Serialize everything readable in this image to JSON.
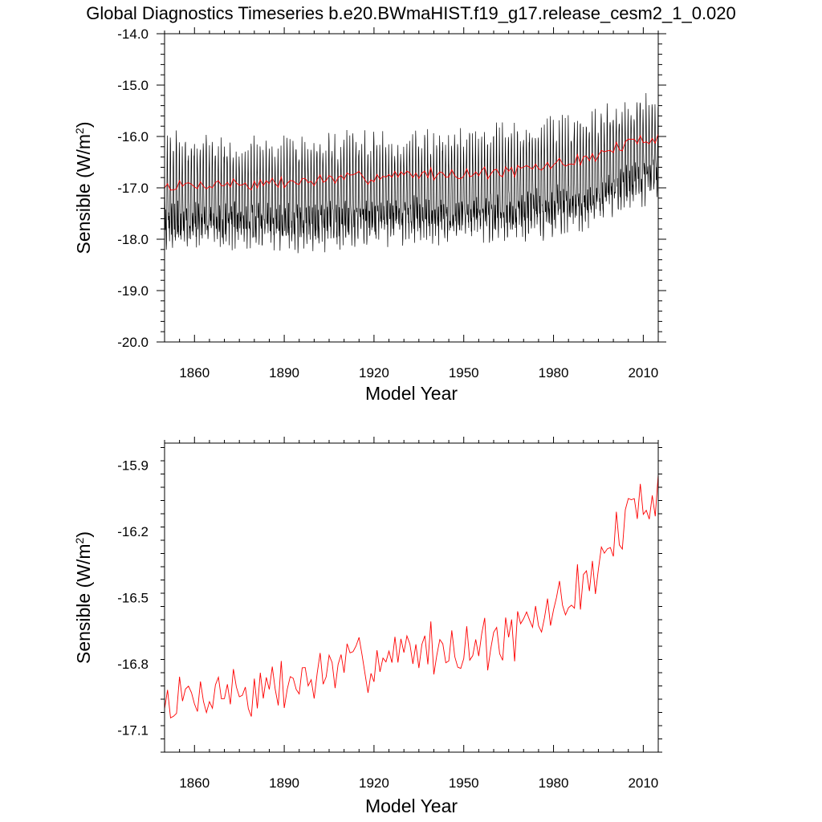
{
  "figure": {
    "title": "Global Diagnostics Timeseries b.e20.BWmaHIST.f19_g17.release_cesm2_1_0.020"
  },
  "chart_data": [
    {
      "type": "line",
      "name": "monthly-and-annual",
      "title": "",
      "xlabel": "Model Year",
      "ylabel_main": "Sensible (W/m",
      "ylabel_sup": "2",
      "ylabel_close": ")",
      "xlim": [
        1850,
        2015
      ],
      "ylim": [
        -20.0,
        -14.0
      ],
      "x_ticks": [
        1860,
        1890,
        1920,
        1950,
        1980,
        2010
      ],
      "x_tick_labels": [
        "1860",
        "1890",
        "1920",
        "1950",
        "1980",
        "2010"
      ],
      "y_ticks": [
        -20.0,
        -19.0,
        -18.0,
        -17.0,
        -16.0,
        -15.0,
        -14.0
      ],
      "y_tick_labels": [
        "-20.0",
        "-19.0",
        "-18.0",
        "-17.0",
        "-16.0",
        "-15.0",
        "-14.0"
      ],
      "series": [
        {
          "name": "monthly",
          "color": "#000000",
          "monthly_envelope": {
            "years": [
              1850,
              1870,
              1890,
              1910,
              1930,
              1950,
              1970,
              1990,
              2000,
              2010,
              2015
            ],
            "max": [
              -16.0,
              -16.1,
              -16.1,
              -16.0,
              -16.0,
              -15.9,
              -15.8,
              -15.6,
              -15.4,
              -15.2,
              -15.2
            ],
            "min": [
              -18.6,
              -18.5,
              -18.6,
              -18.5,
              -18.4,
              -18.4,
              -18.4,
              -18.2,
              -17.9,
              -17.7,
              -17.5
            ]
          }
        },
        {
          "name": "annual",
          "color": "#ff0000",
          "anchors": {
            "years": [
              1850,
              1860,
              1870,
              1880,
              1890,
              1900,
              1910,
              1920,
              1930,
              1940,
              1950,
              1960,
              1970,
              1980,
              1990,
              1995,
              2000,
              2005,
              2010,
              2015
            ],
            "values": [
              -16.98,
              -16.95,
              -16.91,
              -16.93,
              -16.9,
              -16.86,
              -16.82,
              -16.78,
              -16.74,
              -16.73,
              -16.72,
              -16.7,
              -16.66,
              -16.55,
              -16.45,
              -16.35,
              -16.25,
              -16.15,
              -16.05,
              -16.0
            ]
          }
        }
      ]
    },
    {
      "type": "line",
      "name": "annual-mean",
      "title": "",
      "xlabel": "Model Year",
      "ylabel_main": "Sensible (W/m",
      "ylabel_sup": "2",
      "ylabel_close": ")",
      "xlim": [
        1850,
        2015
      ],
      "ylim": [
        -17.2,
        -15.8
      ],
      "x_ticks": [
        1860,
        1890,
        1920,
        1950,
        1980,
        2010
      ],
      "x_tick_labels": [
        "1860",
        "1890",
        "1920",
        "1950",
        "1980",
        "2010"
      ],
      "y_ticks": [
        -17.1,
        -16.8,
        -16.5,
        -16.2,
        -15.9
      ],
      "y_tick_labels": [
        "-17.1",
        "-16.8",
        "-16.5",
        "-16.2",
        "-15.9"
      ],
      "series": [
        {
          "name": "annual",
          "color": "#ff0000",
          "anchors": {
            "years": [
              1850,
              1860,
              1870,
              1880,
              1890,
              1900,
              1910,
              1920,
              1930,
              1940,
              1950,
              1960,
              1970,
              1980,
              1990,
              1995,
              2000,
              2005,
              2010,
              2015
            ],
            "values": [
              -16.98,
              -16.95,
              -16.91,
              -16.93,
              -16.9,
              -16.86,
              -16.82,
              -16.78,
              -16.74,
              -16.73,
              -16.72,
              -16.7,
              -16.66,
              -16.55,
              -16.45,
              -16.35,
              -16.25,
              -16.15,
              -16.05,
              -16.0
            ]
          }
        }
      ]
    }
  ]
}
